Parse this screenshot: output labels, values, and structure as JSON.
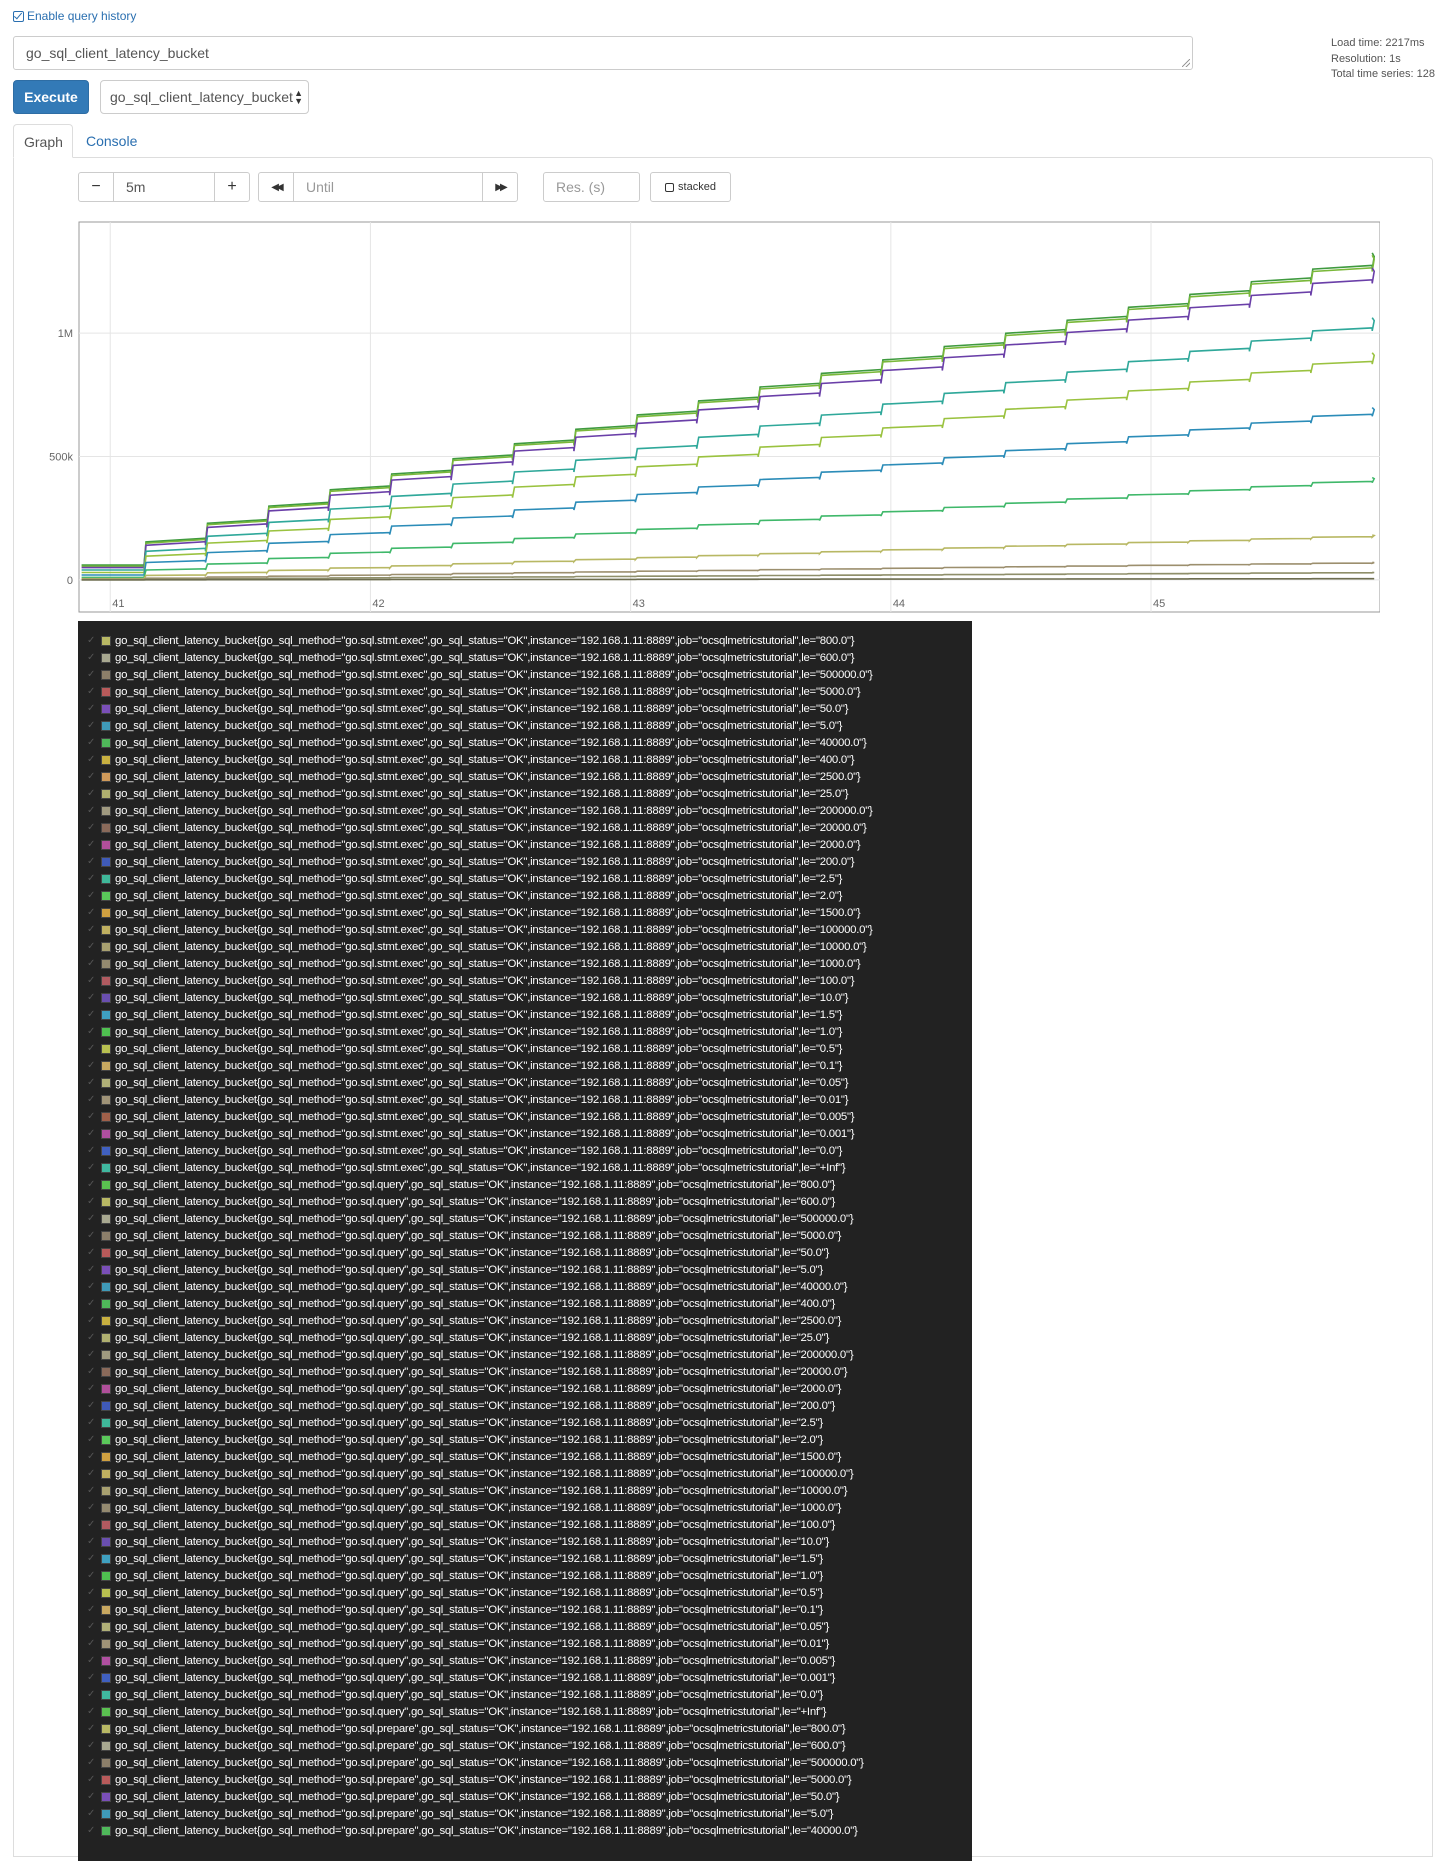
{
  "history": {
    "label": "Enable query history",
    "checked": true
  },
  "query": {
    "value": "go_sql_client_latency_bucket"
  },
  "stats": {
    "load_time": "Load time: 2217ms",
    "resolution": "Resolution: 1s",
    "total_series": "Total time series: 128"
  },
  "execute": {
    "label": "Execute"
  },
  "metric_select": {
    "value": "go_sql_client_latency_bucket"
  },
  "tabs": [
    {
      "label": "Graph",
      "active": true
    },
    {
      "label": "Console",
      "active": false
    }
  ],
  "controls": {
    "minus": "−",
    "plus": "+",
    "range": "5m",
    "back": "◀◀",
    "until_placeholder": "Until",
    "forward": "▶▶",
    "res_placeholder": "Res. (s)",
    "stacked_label": "stacked"
  },
  "chart_data": {
    "type": "line",
    "x_ticks": [
      "41",
      "42",
      "43",
      "44",
      "45"
    ],
    "y_ticks": [
      "0",
      "500k",
      "1M"
    ],
    "ylim": [
      -130000,
      1450000
    ],
    "xlim": [
      40.88,
      45.88
    ],
    "series": [
      {
        "color": "#3f9a3f",
        "start": 60000,
        "end": 1310000
      },
      {
        "color": "#7ab83a",
        "start": 55000,
        "end": 1300000
      },
      {
        "color": "#6a3fa8",
        "start": 50000,
        "end": 1250000
      },
      {
        "color": "#2fa89a",
        "start": 40000,
        "end": 1050000
      },
      {
        "color": "#9ac23f",
        "start": 30000,
        "end": 910000
      },
      {
        "color": "#2b8cb8",
        "start": 20000,
        "end": 690000
      },
      {
        "color": "#3fb86a",
        "start": 10000,
        "end": 410000
      },
      {
        "color": "#b8b864",
        "start": 5000,
        "end": 180000
      },
      {
        "color": "#9c8f6e",
        "start": 2000,
        "end": 70000
      },
      {
        "color": "#8f8f6a",
        "start": 1000,
        "end": 30000
      },
      {
        "color": "#6e6e50",
        "start": 0,
        "end": 5000
      }
    ]
  },
  "legend": [
    {
      "color": "#b8b864",
      "text": "go_sql_client_latency_bucket{go_sql_method=\"go.sql.stmt.exec\",go_sql_status=\"OK\",instance=\"192.168.1.11:8889\",job=\"ocsqlmetricstutorial\",le=\"800.0\"}"
    },
    {
      "color": "#a8a890",
      "text": "go_sql_client_latency_bucket{go_sql_method=\"go.sql.stmt.exec\",go_sql_status=\"OK\",instance=\"192.168.1.11:8889\",job=\"ocsqlmetricstutorial\",le=\"600.0\"}"
    },
    {
      "color": "#8c7f6a",
      "text": "go_sql_client_latency_bucket{go_sql_method=\"go.sql.stmt.exec\",go_sql_status=\"OK\",instance=\"192.168.1.11:8889\",job=\"ocsqlmetricstutorial\",le=\"500000.0\"}"
    },
    {
      "color": "#b85a5a",
      "text": "go_sql_client_latency_bucket{go_sql_method=\"go.sql.stmt.exec\",go_sql_status=\"OK\",instance=\"192.168.1.11:8889\",job=\"ocsqlmetricstutorial\",le=\"5000.0\"}"
    },
    {
      "color": "#7a4fb8",
      "text": "go_sql_client_latency_bucket{go_sql_method=\"go.sql.stmt.exec\",go_sql_status=\"OK\",instance=\"192.168.1.11:8889\",job=\"ocsqlmetricstutorial\",le=\"50.0\"}"
    },
    {
      "color": "#3f9ab8",
      "text": "go_sql_client_latency_bucket{go_sql_method=\"go.sql.stmt.exec\",go_sql_status=\"OK\",instance=\"192.168.1.11:8889\",job=\"ocsqlmetricstutorial\",le=\"5.0\"}"
    },
    {
      "color": "#4fb85a",
      "text": "go_sql_client_latency_bucket{go_sql_method=\"go.sql.stmt.exec\",go_sql_status=\"OK\",instance=\"192.168.1.11:8889\",job=\"ocsqlmetricstutorial\",le=\"40000.0\"}"
    },
    {
      "color": "#c8b040",
      "text": "go_sql_client_latency_bucket{go_sql_method=\"go.sql.stmt.exec\",go_sql_status=\"OK\",instance=\"192.168.1.11:8889\",job=\"ocsqlmetricstutorial\",le=\"400.0\"}"
    },
    {
      "color": "#d09a5a",
      "text": "go_sql_client_latency_bucket{go_sql_method=\"go.sql.stmt.exec\",go_sql_status=\"OK\",instance=\"192.168.1.11:8889\",job=\"ocsqlmetricstutorial\",le=\"2500.0\"}"
    },
    {
      "color": "#b0b070",
      "text": "go_sql_client_latency_bucket{go_sql_method=\"go.sql.stmt.exec\",go_sql_status=\"OK\",instance=\"192.168.1.11:8889\",job=\"ocsqlmetricstutorial\",le=\"25.0\"}"
    },
    {
      "color": "#a09a80",
      "text": "go_sql_client_latency_bucket{go_sql_method=\"go.sql.stmt.exec\",go_sql_status=\"OK\",instance=\"192.168.1.11:8889\",job=\"ocsqlmetricstutorial\",le=\"200000.0\"}"
    },
    {
      "color": "#8a6a5a",
      "text": "go_sql_client_latency_bucket{go_sql_method=\"go.sql.stmt.exec\",go_sql_status=\"OK\",instance=\"192.168.1.11:8889\",job=\"ocsqlmetricstutorial\",le=\"20000.0\"}"
    },
    {
      "color": "#b04f9a",
      "text": "go_sql_client_latency_bucket{go_sql_method=\"go.sql.stmt.exec\",go_sql_status=\"OK\",instance=\"192.168.1.11:8889\",job=\"ocsqlmetricstutorial\",le=\"2000.0\"}"
    },
    {
      "color": "#3f5ab8",
      "text": "go_sql_client_latency_bucket{go_sql_method=\"go.sql.stmt.exec\",go_sql_status=\"OK\",instance=\"192.168.1.11:8889\",job=\"ocsqlmetricstutorial\",le=\"200.0\"}"
    },
    {
      "color": "#3fb89a",
      "text": "go_sql_client_latency_bucket{go_sql_method=\"go.sql.stmt.exec\",go_sql_status=\"OK\",instance=\"192.168.1.11:8889\",job=\"ocsqlmetricstutorial\",le=\"2.5\"}"
    },
    {
      "color": "#5ac85a",
      "text": "go_sql_client_latency_bucket{go_sql_method=\"go.sql.stmt.exec\",go_sql_status=\"OK\",instance=\"192.168.1.11:8889\",job=\"ocsqlmetricstutorial\",le=\"2.0\"}"
    },
    {
      "color": "#d0a040",
      "text": "go_sql_client_latency_bucket{go_sql_method=\"go.sql.stmt.exec\",go_sql_status=\"OK\",instance=\"192.168.1.11:8889\",job=\"ocsqlmetricstutorial\",le=\"1500.0\"}"
    },
    {
      "color": "#c0b060",
      "text": "go_sql_client_latency_bucket{go_sql_method=\"go.sql.stmt.exec\",go_sql_status=\"OK\",instance=\"192.168.1.11:8889\",job=\"ocsqlmetricstutorial\",le=\"100000.0\"}"
    },
    {
      "color": "#a8a070",
      "text": "go_sql_client_latency_bucket{go_sql_method=\"go.sql.stmt.exec\",go_sql_status=\"OK\",instance=\"192.168.1.11:8889\",job=\"ocsqlmetricstutorial\",le=\"10000.0\"}"
    },
    {
      "color": "#948a70",
      "text": "go_sql_client_latency_bucket{go_sql_method=\"go.sql.stmt.exec\",go_sql_status=\"OK\",instance=\"192.168.1.11:8889\",job=\"ocsqlmetricstutorial\",le=\"1000.0\"}"
    },
    {
      "color": "#b05a60",
      "text": "go_sql_client_latency_bucket{go_sql_method=\"go.sql.stmt.exec\",go_sql_status=\"OK\",instance=\"192.168.1.11:8889\",job=\"ocsqlmetricstutorial\",le=\"100.0\"}"
    },
    {
      "color": "#6a4fb0",
      "text": "go_sql_client_latency_bucket{go_sql_method=\"go.sql.stmt.exec\",go_sql_status=\"OK\",instance=\"192.168.1.11:8889\",job=\"ocsqlmetricstutorial\",le=\"10.0\"}"
    },
    {
      "color": "#3fa0c0",
      "text": "go_sql_client_latency_bucket{go_sql_method=\"go.sql.stmt.exec\",go_sql_status=\"OK\",instance=\"192.168.1.11:8889\",job=\"ocsqlmetricstutorial\",le=\"1.5\"}"
    },
    {
      "color": "#4fc050",
      "text": "go_sql_client_latency_bucket{go_sql_method=\"go.sql.stmt.exec\",go_sql_status=\"OK\",instance=\"192.168.1.11:8889\",job=\"ocsqlmetricstutorial\",le=\"1.0\"}"
    },
    {
      "color": "#b8c050",
      "text": "go_sql_client_latency_bucket{go_sql_method=\"go.sql.stmt.exec\",go_sql_status=\"OK\",instance=\"192.168.1.11:8889\",job=\"ocsqlmetricstutorial\",le=\"0.5\"}"
    },
    {
      "color": "#c8a860",
      "text": "go_sql_client_latency_bucket{go_sql_method=\"go.sql.stmt.exec\",go_sql_status=\"OK\",instance=\"192.168.1.11:8889\",job=\"ocsqlmetricstutorial\",le=\"0.1\"}"
    },
    {
      "color": "#b0b078",
      "text": "go_sql_client_latency_bucket{go_sql_method=\"go.sql.stmt.exec\",go_sql_status=\"OK\",instance=\"192.168.1.11:8889\",job=\"ocsqlmetricstutorial\",le=\"0.05\"}"
    },
    {
      "color": "#a09478",
      "text": "go_sql_client_latency_bucket{go_sql_method=\"go.sql.stmt.exec\",go_sql_status=\"OK\",instance=\"192.168.1.11:8889\",job=\"ocsqlmetricstutorial\",le=\"0.01\"}"
    },
    {
      "color": "#a0604a",
      "text": "go_sql_client_latency_bucket{go_sql_method=\"go.sql.stmt.exec\",go_sql_status=\"OK\",instance=\"192.168.1.11:8889\",job=\"ocsqlmetricstutorial\",le=\"0.005\"}"
    },
    {
      "color": "#b04fa0",
      "text": "go_sql_client_latency_bucket{go_sql_method=\"go.sql.stmt.exec\",go_sql_status=\"OK\",instance=\"192.168.1.11:8889\",job=\"ocsqlmetricstutorial\",le=\"0.001\"}"
    },
    {
      "color": "#4060c0",
      "text": "go_sql_client_latency_bucket{go_sql_method=\"go.sql.stmt.exec\",go_sql_status=\"OK\",instance=\"192.168.1.11:8889\",job=\"ocsqlmetricstutorial\",le=\"0.0\"}"
    },
    {
      "color": "#40b8a0",
      "text": "go_sql_client_latency_bucket{go_sql_method=\"go.sql.stmt.exec\",go_sql_status=\"OK\",instance=\"192.168.1.11:8889\",job=\"ocsqlmetricstutorial\",le=\"+Inf\"}"
    },
    {
      "color": "#5ac050",
      "text": "go_sql_client_latency_bucket{go_sql_method=\"go.sql.query\",go_sql_status=\"OK\",instance=\"192.168.1.11:8889\",job=\"ocsqlmetricstutorial\",le=\"800.0\"}"
    },
    {
      "color": "#b8b864",
      "text": "go_sql_client_latency_bucket{go_sql_method=\"go.sql.query\",go_sql_status=\"OK\",instance=\"192.168.1.11:8889\",job=\"ocsqlmetricstutorial\",le=\"600.0\"}"
    },
    {
      "color": "#a8a890",
      "text": "go_sql_client_latency_bucket{go_sql_method=\"go.sql.query\",go_sql_status=\"OK\",instance=\"192.168.1.11:8889\",job=\"ocsqlmetricstutorial\",le=\"500000.0\"}"
    },
    {
      "color": "#8c7f6a",
      "text": "go_sql_client_latency_bucket{go_sql_method=\"go.sql.query\",go_sql_status=\"OK\",instance=\"192.168.1.11:8889\",job=\"ocsqlmetricstutorial\",le=\"5000.0\"}"
    },
    {
      "color": "#b85a5a",
      "text": "go_sql_client_latency_bucket{go_sql_method=\"go.sql.query\",go_sql_status=\"OK\",instance=\"192.168.1.11:8889\",job=\"ocsqlmetricstutorial\",le=\"50.0\"}"
    },
    {
      "color": "#7a4fb8",
      "text": "go_sql_client_latency_bucket{go_sql_method=\"go.sql.query\",go_sql_status=\"OK\",instance=\"192.168.1.11:8889\",job=\"ocsqlmetricstutorial\",le=\"5.0\"}"
    },
    {
      "color": "#3f9ab8",
      "text": "go_sql_client_latency_bucket{go_sql_method=\"go.sql.query\",go_sql_status=\"OK\",instance=\"192.168.1.11:8889\",job=\"ocsqlmetricstutorial\",le=\"40000.0\"}"
    },
    {
      "color": "#4fb85a",
      "text": "go_sql_client_latency_bucket{go_sql_method=\"go.sql.query\",go_sql_status=\"OK\",instance=\"192.168.1.11:8889\",job=\"ocsqlmetricstutorial\",le=\"400.0\"}"
    },
    {
      "color": "#c8b040",
      "text": "go_sql_client_latency_bucket{go_sql_method=\"go.sql.query\",go_sql_status=\"OK\",instance=\"192.168.1.11:8889\",job=\"ocsqlmetricstutorial\",le=\"2500.0\"}"
    },
    {
      "color": "#b0b070",
      "text": "go_sql_client_latency_bucket{go_sql_method=\"go.sql.query\",go_sql_status=\"OK\",instance=\"192.168.1.11:8889\",job=\"ocsqlmetricstutorial\",le=\"25.0\"}"
    },
    {
      "color": "#a09a80",
      "text": "go_sql_client_latency_bucket{go_sql_method=\"go.sql.query\",go_sql_status=\"OK\",instance=\"192.168.1.11:8889\",job=\"ocsqlmetricstutorial\",le=\"200000.0\"}"
    },
    {
      "color": "#8a6a5a",
      "text": "go_sql_client_latency_bucket{go_sql_method=\"go.sql.query\",go_sql_status=\"OK\",instance=\"192.168.1.11:8889\",job=\"ocsqlmetricstutorial\",le=\"20000.0\"}"
    },
    {
      "color": "#b04f9a",
      "text": "go_sql_client_latency_bucket{go_sql_method=\"go.sql.query\",go_sql_status=\"OK\",instance=\"192.168.1.11:8889\",job=\"ocsqlmetricstutorial\",le=\"2000.0\"}"
    },
    {
      "color": "#3f5ab8",
      "text": "go_sql_client_latency_bucket{go_sql_method=\"go.sql.query\",go_sql_status=\"OK\",instance=\"192.168.1.11:8889\",job=\"ocsqlmetricstutorial\",le=\"200.0\"}"
    },
    {
      "color": "#3fb89a",
      "text": "go_sql_client_latency_bucket{go_sql_method=\"go.sql.query\",go_sql_status=\"OK\",instance=\"192.168.1.11:8889\",job=\"ocsqlmetricstutorial\",le=\"2.5\"}"
    },
    {
      "color": "#5ac85a",
      "text": "go_sql_client_latency_bucket{go_sql_method=\"go.sql.query\",go_sql_status=\"OK\",instance=\"192.168.1.11:8889\",job=\"ocsqlmetricstutorial\",le=\"2.0\"}"
    },
    {
      "color": "#d0a040",
      "text": "go_sql_client_latency_bucket{go_sql_method=\"go.sql.query\",go_sql_status=\"OK\",instance=\"192.168.1.11:8889\",job=\"ocsqlmetricstutorial\",le=\"1500.0\"}"
    },
    {
      "color": "#c0b060",
      "text": "go_sql_client_latency_bucket{go_sql_method=\"go.sql.query\",go_sql_status=\"OK\",instance=\"192.168.1.11:8889\",job=\"ocsqlmetricstutorial\",le=\"100000.0\"}"
    },
    {
      "color": "#a8a070",
      "text": "go_sql_client_latency_bucket{go_sql_method=\"go.sql.query\",go_sql_status=\"OK\",instance=\"192.168.1.11:8889\",job=\"ocsqlmetricstutorial\",le=\"10000.0\"}"
    },
    {
      "color": "#948a70",
      "text": "go_sql_client_latency_bucket{go_sql_method=\"go.sql.query\",go_sql_status=\"OK\",instance=\"192.168.1.11:8889\",job=\"ocsqlmetricstutorial\",le=\"1000.0\"}"
    },
    {
      "color": "#b05a60",
      "text": "go_sql_client_latency_bucket{go_sql_method=\"go.sql.query\",go_sql_status=\"OK\",instance=\"192.168.1.11:8889\",job=\"ocsqlmetricstutorial\",le=\"100.0\"}"
    },
    {
      "color": "#6a4fb0",
      "text": "go_sql_client_latency_bucket{go_sql_method=\"go.sql.query\",go_sql_status=\"OK\",instance=\"192.168.1.11:8889\",job=\"ocsqlmetricstutorial\",le=\"10.0\"}"
    },
    {
      "color": "#3fa0c0",
      "text": "go_sql_client_latency_bucket{go_sql_method=\"go.sql.query\",go_sql_status=\"OK\",instance=\"192.168.1.11:8889\",job=\"ocsqlmetricstutorial\",le=\"1.5\"}"
    },
    {
      "color": "#4fc050",
      "text": "go_sql_client_latency_bucket{go_sql_method=\"go.sql.query\",go_sql_status=\"OK\",instance=\"192.168.1.11:8889\",job=\"ocsqlmetricstutorial\",le=\"1.0\"}"
    },
    {
      "color": "#b8c050",
      "text": "go_sql_client_latency_bucket{go_sql_method=\"go.sql.query\",go_sql_status=\"OK\",instance=\"192.168.1.11:8889\",job=\"ocsqlmetricstutorial\",le=\"0.5\"}"
    },
    {
      "color": "#c8a860",
      "text": "go_sql_client_latency_bucket{go_sql_method=\"go.sql.query\",go_sql_status=\"OK\",instance=\"192.168.1.11:8889\",job=\"ocsqlmetricstutorial\",le=\"0.1\"}"
    },
    {
      "color": "#b0b078",
      "text": "go_sql_client_latency_bucket{go_sql_method=\"go.sql.query\",go_sql_status=\"OK\",instance=\"192.168.1.11:8889\",job=\"ocsqlmetricstutorial\",le=\"0.05\"}"
    },
    {
      "color": "#a09478",
      "text": "go_sql_client_latency_bucket{go_sql_method=\"go.sql.query\",go_sql_status=\"OK\",instance=\"192.168.1.11:8889\",job=\"ocsqlmetricstutorial\",le=\"0.01\"}"
    },
    {
      "color": "#b04fa0",
      "text": "go_sql_client_latency_bucket{go_sql_method=\"go.sql.query\",go_sql_status=\"OK\",instance=\"192.168.1.11:8889\",job=\"ocsqlmetricstutorial\",le=\"0.005\"}"
    },
    {
      "color": "#4060c0",
      "text": "go_sql_client_latency_bucket{go_sql_method=\"go.sql.query\",go_sql_status=\"OK\",instance=\"192.168.1.11:8889\",job=\"ocsqlmetricstutorial\",le=\"0.001\"}"
    },
    {
      "color": "#40b8a0",
      "text": "go_sql_client_latency_bucket{go_sql_method=\"go.sql.query\",go_sql_status=\"OK\",instance=\"192.168.1.11:8889\",job=\"ocsqlmetricstutorial\",le=\"0.0\"}"
    },
    {
      "color": "#5ac050",
      "text": "go_sql_client_latency_bucket{go_sql_method=\"go.sql.query\",go_sql_status=\"OK\",instance=\"192.168.1.11:8889\",job=\"ocsqlmetricstutorial\",le=\"+Inf\"}"
    },
    {
      "color": "#b8b864",
      "text": "go_sql_client_latency_bucket{go_sql_method=\"go.sql.prepare\",go_sql_status=\"OK\",instance=\"192.168.1.11:8889\",job=\"ocsqlmetricstutorial\",le=\"800.0\"}"
    },
    {
      "color": "#a8a890",
      "text": "go_sql_client_latency_bucket{go_sql_method=\"go.sql.prepare\",go_sql_status=\"OK\",instance=\"192.168.1.11:8889\",job=\"ocsqlmetricstutorial\",le=\"600.0\"}"
    },
    {
      "color": "#8c7f6a",
      "text": "go_sql_client_latency_bucket{go_sql_method=\"go.sql.prepare\",go_sql_status=\"OK\",instance=\"192.168.1.11:8889\",job=\"ocsqlmetricstutorial\",le=\"500000.0\"}"
    },
    {
      "color": "#b85a5a",
      "text": "go_sql_client_latency_bucket{go_sql_method=\"go.sql.prepare\",go_sql_status=\"OK\",instance=\"192.168.1.11:8889\",job=\"ocsqlmetricstutorial\",le=\"5000.0\"}"
    },
    {
      "color": "#7a4fb8",
      "text": "go_sql_client_latency_bucket{go_sql_method=\"go.sql.prepare\",go_sql_status=\"OK\",instance=\"192.168.1.11:8889\",job=\"ocsqlmetricstutorial\",le=\"50.0\"}"
    },
    {
      "color": "#3f9ab8",
      "text": "go_sql_client_latency_bucket{go_sql_method=\"go.sql.prepare\",go_sql_status=\"OK\",instance=\"192.168.1.11:8889\",job=\"ocsqlmetricstutorial\",le=\"5.0\"}"
    },
    {
      "color": "#4fb85a",
      "text": "go_sql_client_latency_bucket{go_sql_method=\"go.sql.prepare\",go_sql_status=\"OK\",instance=\"192.168.1.11:8889\",job=\"ocsqlmetricstutorial\",le=\"40000.0\"}"
    }
  ]
}
